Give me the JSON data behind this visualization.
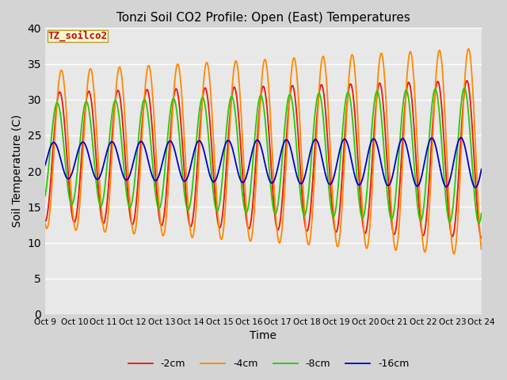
{
  "title": "Tonzi Soil CO2 Profile: Open (East) Temperatures",
  "xlabel": "Time",
  "ylabel": "Soil Temperature (C)",
  "ylim": [
    0,
    40
  ],
  "fig_facecolor": "#d4d4d4",
  "plot_bg_color": "#e8e8e8",
  "legend_label": "TZ_soilco2",
  "series": [
    {
      "label": "-2cm",
      "color": "#ee1111",
      "amplitude_start": 9.0,
      "amplitude_end": 11.0,
      "mean": 22.0,
      "phase": 0.0
    },
    {
      "label": "-4cm",
      "color": "#ff8800",
      "amplitude_start": 11.0,
      "amplitude_end": 14.5,
      "mean": 23.0,
      "phase": -0.35
    },
    {
      "label": "-8cm",
      "color": "#22cc00",
      "amplitude_start": 7.0,
      "amplitude_end": 9.5,
      "mean": 22.5,
      "phase": 0.55
    },
    {
      "label": "-16cm",
      "color": "#0000cc",
      "amplitude_start": 2.5,
      "amplitude_end": 3.5,
      "mean": 21.5,
      "phase": 1.3
    }
  ],
  "x_tick_labels": [
    "Oct 9 ",
    "Oct 10",
    "Oct 11",
    "Oct 12",
    "Oct 13",
    "Oct 14",
    "Oct 15",
    "Oct 16",
    "Oct 17",
    "Oct 18",
    "Oct 19",
    "Oct 20",
    "Oct 21",
    "Oct 22",
    "Oct 23",
    "Oct 24"
  ],
  "x_tick_positions": [
    0,
    1,
    2,
    3,
    4,
    5,
    6,
    7,
    8,
    9,
    10,
    11,
    12,
    13,
    14,
    15
  ],
  "n_points": 1500,
  "x_start": 0,
  "x_end": 15,
  "grid_color": "#ffffff",
  "grid_lw": 1.0,
  "line_lw": 1.3
}
